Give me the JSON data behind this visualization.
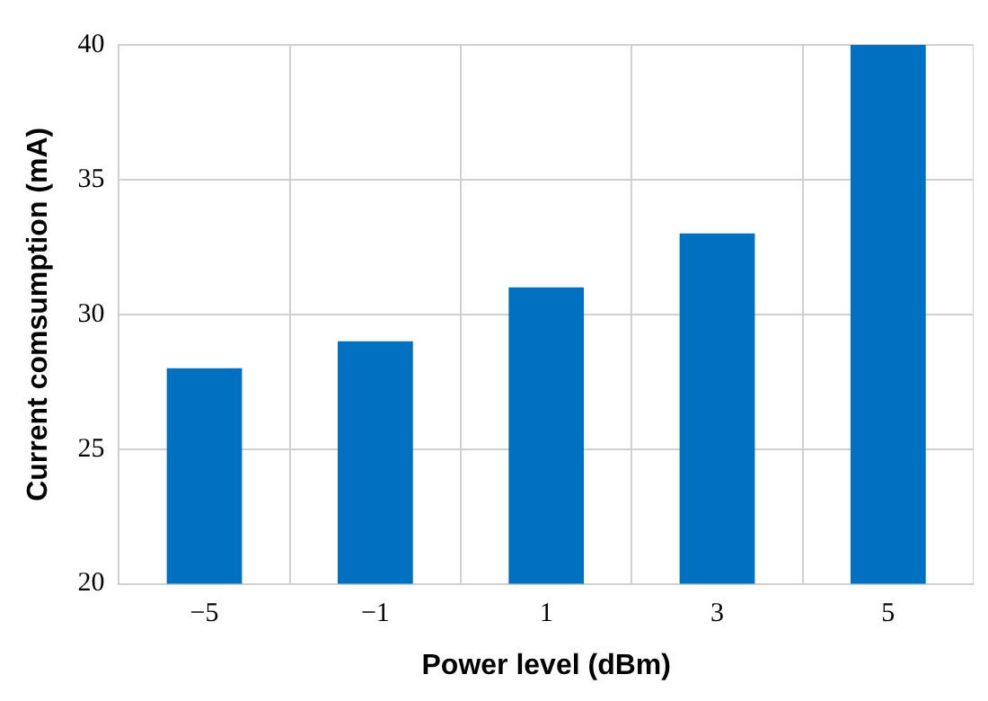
{
  "chart_data": {
    "type": "bar",
    "xlabel": "Power level (dBm)",
    "ylabel": "Current comsumption (mA)",
    "categories": [
      "−5",
      "−1",
      "1",
      "3",
      "5"
    ],
    "values": [
      28,
      29,
      31,
      33,
      40
    ],
    "color": "#0070c0",
    "ylim": [
      20,
      40
    ],
    "yticks": [
      20,
      25,
      30,
      35,
      40
    ],
    "grid": true
  }
}
